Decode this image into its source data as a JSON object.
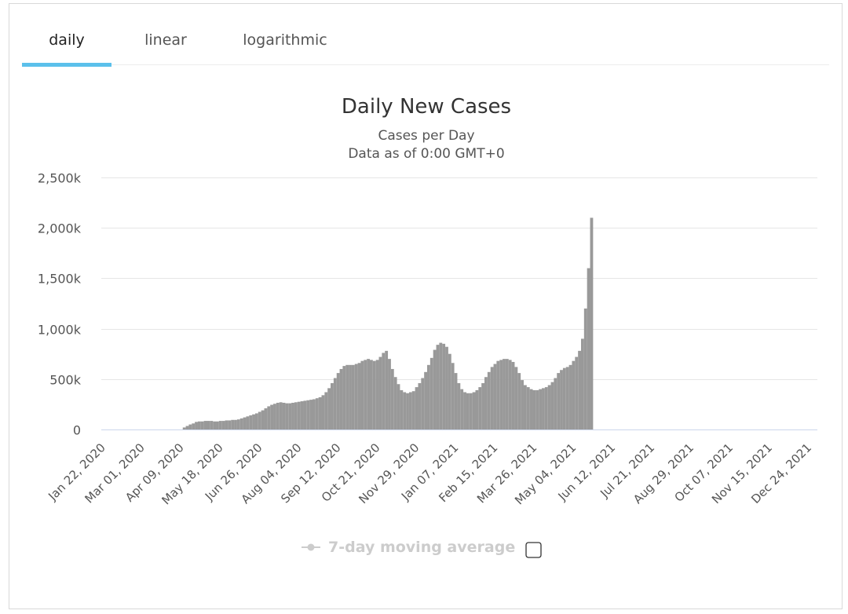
{
  "tabs": [
    {
      "label": "daily",
      "active": true
    },
    {
      "label": "linear",
      "active": false
    },
    {
      "label": "logarithmic",
      "active": false
    }
  ],
  "colors": {
    "accent": "#5bc0eb",
    "bar": "#999999",
    "legend_inactive": "#cccccc"
  },
  "chart_data": {
    "type": "bar",
    "title": "Daily New Cases",
    "subtitle_lines": [
      "Cases per Day",
      "Data as of 0:00 GMT+0"
    ],
    "ylim": [
      0,
      2500000
    ],
    "y_ticks": [
      0,
      500000,
      1000000,
      1500000,
      2000000,
      2500000
    ],
    "y_tick_labels": [
      "0",
      "500k",
      "1,000k",
      "1,500k",
      "2,000k",
      "2,500k"
    ],
    "x_tick_labels": [
      "Jan 22, 2020",
      "Mar 01, 2020",
      "Apr 09, 2020",
      "May 18, 2020",
      "Jun 26, 2020",
      "Aug 04, 2020",
      "Sep 12, 2020",
      "Oct 21, 2020",
      "Nov 29, 2020",
      "Jan 07, 2021",
      "Feb 15, 2021",
      "Mar 26, 2021",
      "May 04, 2021",
      "Jun 12, 2021",
      "Jul 21, 2021",
      "Aug 29, 2021",
      "Oct 07, 2021",
      "Nov 15, 2021",
      "Dec 24, 2021"
    ],
    "x_start": "2020-01-22",
    "x_end": "2022-01-03",
    "series": [
      {
        "name": "Daily New Cases",
        "period_days": 3,
        "note": "Daily values read off the chart, one value per 3-day period starting Jan 22, 2020",
        "values": [
          0,
          0,
          0,
          0,
          0,
          0,
          0,
          0,
          0,
          0,
          0,
          0,
          0,
          0,
          0,
          0,
          0,
          0,
          0,
          0,
          0,
          0,
          0,
          0,
          0,
          0,
          0,
          20000,
          35000,
          50000,
          60000,
          75000,
          80000,
          80000,
          85000,
          85000,
          85000,
          80000,
          80000,
          85000,
          85000,
          90000,
          90000,
          95000,
          95000,
          100000,
          110000,
          120000,
          130000,
          140000,
          150000,
          160000,
          175000,
          190000,
          210000,
          230000,
          245000,
          255000,
          265000,
          270000,
          265000,
          260000,
          260000,
          265000,
          270000,
          275000,
          280000,
          285000,
          290000,
          295000,
          300000,
          310000,
          320000,
          340000,
          370000,
          410000,
          460000,
          510000,
          560000,
          600000,
          630000,
          640000,
          640000,
          640000,
          650000,
          660000,
          680000,
          690000,
          700000,
          690000,
          680000,
          690000,
          720000,
          760000,
          780000,
          700000,
          600000,
          520000,
          450000,
          390000,
          370000,
          360000,
          370000,
          380000,
          420000,
          460000,
          510000,
          570000,
          640000,
          710000,
          790000,
          840000,
          860000,
          850000,
          820000,
          750000,
          660000,
          560000,
          460000,
          400000,
          370000,
          360000,
          360000,
          370000,
          390000,
          420000,
          460000,
          520000,
          570000,
          620000,
          650000,
          680000,
          690000,
          700000,
          700000,
          690000,
          670000,
          620000,
          560000,
          490000,
          440000,
          420000,
          400000,
          390000,
          390000,
          400000,
          410000,
          420000,
          440000,
          470000,
          510000,
          560000,
          590000,
          610000,
          620000,
          640000,
          680000,
          720000,
          780000,
          900000,
          1200000,
          1600000,
          2100000
        ]
      }
    ]
  },
  "legend": {
    "label": "7-day moving average"
  }
}
